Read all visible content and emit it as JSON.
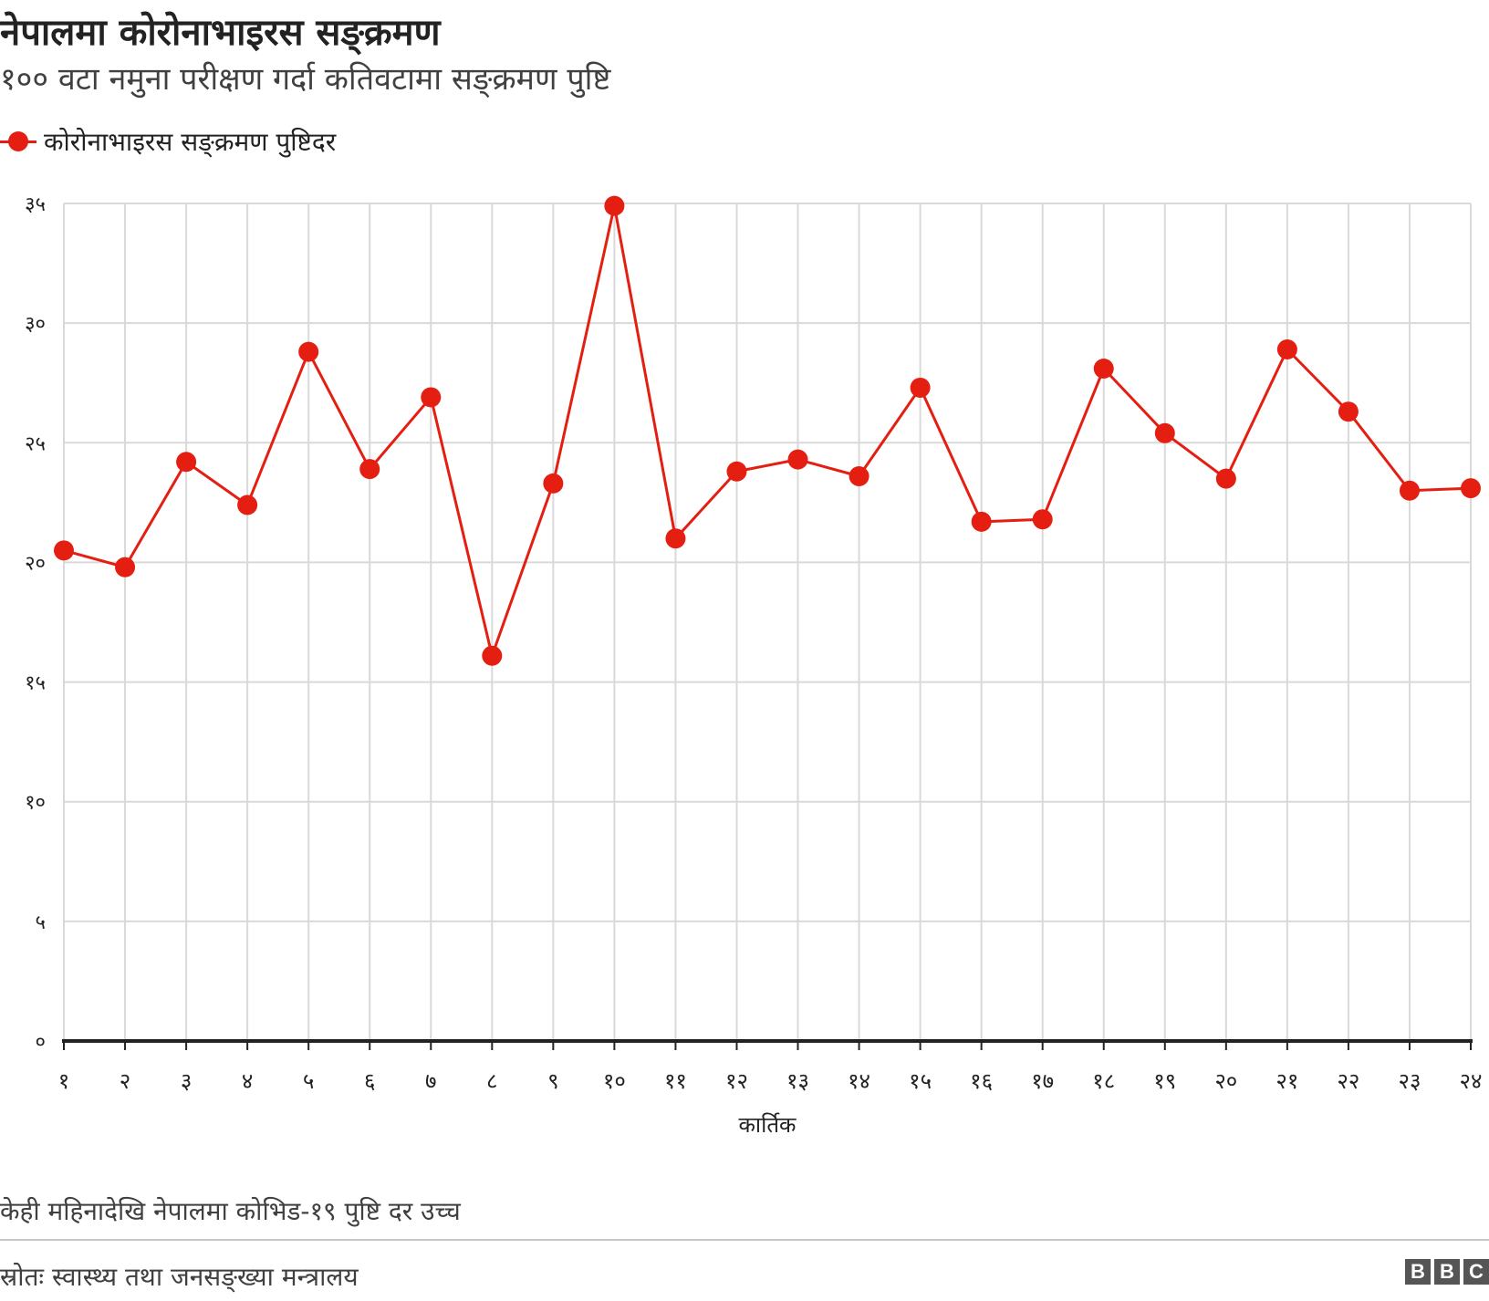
{
  "header": {
    "title": "नेपालमा कोरोनाभाइरस सङ्क्रमण",
    "subtitle": "१०० वटा नमुना परीक्षण गर्दा कतिवटामा सङ्क्रमण पुष्टि"
  },
  "legend": {
    "label": "कोरोनाभाइरस सङ्क्रमण पुष्टिदर"
  },
  "chart_data": {
    "type": "line",
    "title": "नेपालमा कोरोनाभाइरस सङ्क्रमण",
    "subtitle": "१०० वटा नमुना परीक्षण गर्दा कतिवटामा सङ्क्रमण पुष्टि",
    "xlabel": "कार्तिक",
    "ylabel": "",
    "categories": [
      "१",
      "२",
      "३",
      "४",
      "५",
      "६",
      "७",
      "८",
      "९",
      "१०",
      "११",
      "१२",
      "१३",
      "१४",
      "१५",
      "१६",
      "१७",
      "१८",
      "१९",
      "२०",
      "२१",
      "२२",
      "२३",
      "२४"
    ],
    "series": [
      {
        "name": "कोरोनाभाइरस सङ्क्रमण पुष्टिदर",
        "values": [
          20.5,
          19.8,
          24.2,
          22.4,
          28.8,
          23.9,
          26.9,
          16.1,
          23.3,
          34.9,
          21.0,
          23.8,
          24.3,
          23.6,
          27.3,
          21.7,
          21.8,
          28.1,
          25.4,
          23.5,
          28.9,
          26.3,
          23.0,
          23.1
        ],
        "color": "#e51e12"
      }
    ],
    "ylim": [
      0,
      35
    ],
    "yticks": [
      0,
      5,
      10,
      15,
      20,
      25,
      30,
      35
    ],
    "ytick_labels": [
      "०",
      "५",
      "१०",
      "१५",
      "२०",
      "२५",
      "३०",
      "३५"
    ],
    "grid": true,
    "legend_position": "top-left"
  },
  "footer": {
    "note": "केही महिनादेखि नेपालमा कोभिड-१९ पुष्टि दर उच्च",
    "source": "स्रोतः स्वास्थ्य तथा जनसङ्ख्या मन्त्रालय",
    "logo_letters": [
      "B",
      "B",
      "C"
    ]
  }
}
